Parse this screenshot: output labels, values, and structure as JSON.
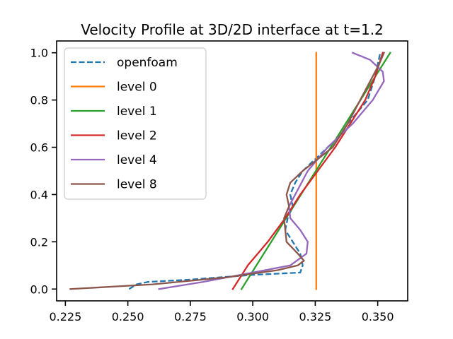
{
  "chart_data": {
    "type": "line",
    "title": "Velocity Profile at 3D/2D interface at t=1.2",
    "xlabel": "",
    "ylabel": "",
    "xlim": [
      0.2215,
      0.362
    ],
    "ylim": [
      -0.05,
      1.05
    ],
    "x_ticks": [
      "0.225",
      "0.250",
      "0.275",
      "0.300",
      "0.325",
      "0.350"
    ],
    "x_tick_values": [
      0.225,
      0.25,
      0.275,
      0.3,
      0.325,
      0.35
    ],
    "y_ticks": [
      "0.0",
      "0.2",
      "0.4",
      "0.6",
      "0.8",
      "1.0"
    ],
    "y_tick_values": [
      0.0,
      0.2,
      0.4,
      0.6,
      0.8,
      1.0
    ],
    "grid": false,
    "legend": "top-left",
    "series": [
      {
        "name": "openfoam",
        "color": "#1f77b4",
        "dashed": true,
        "x": [
          0.2505,
          0.2535,
          0.258,
          0.275,
          0.3,
          0.31,
          0.319,
          0.32,
          0.319,
          0.316,
          0.313,
          0.314,
          0.316,
          0.315,
          0.317,
          0.32,
          0.325,
          0.33,
          0.335,
          0.338,
          0.342,
          0.346,
          0.349,
          0.351
        ],
        "y": [
          0.0,
          0.02,
          0.03,
          0.04,
          0.06,
          0.065,
          0.07,
          0.1,
          0.15,
          0.2,
          0.25,
          0.3,
          0.35,
          0.4,
          0.45,
          0.5,
          0.55,
          0.6,
          0.65,
          0.7,
          0.75,
          0.8,
          0.9,
          1.0
        ]
      },
      {
        "name": "level 0",
        "color": "#ff7f0e",
        "dashed": false,
        "x": [
          0.3254,
          0.3254
        ],
        "y": [
          0.0,
          1.0
        ]
      },
      {
        "name": "level 1",
        "color": "#2ca02c",
        "dashed": false,
        "x": [
          0.2955,
          0.355
        ],
        "y": [
          0.0,
          1.0
        ]
      },
      {
        "name": "level 2",
        "color": "#d62728",
        "dashed": false,
        "x": [
          0.292,
          0.298,
          0.306,
          0.313,
          0.319,
          0.326,
          0.333,
          0.339,
          0.345,
          0.349,
          0.352
        ],
        "y": [
          0.0,
          0.1,
          0.2,
          0.3,
          0.4,
          0.5,
          0.6,
          0.7,
          0.8,
          0.9,
          1.0
        ]
      },
      {
        "name": "level 4",
        "color": "#9467bd",
        "dashed": false,
        "x": [
          0.2625,
          0.28,
          0.3,
          0.315,
          0.3215,
          0.322,
          0.319,
          0.315,
          0.3145,
          0.317,
          0.322,
          0.33,
          0.34,
          0.348,
          0.3525,
          0.352,
          0.347,
          0.34
        ],
        "y": [
          0.0,
          0.03,
          0.07,
          0.1,
          0.15,
          0.2,
          0.25,
          0.3,
          0.35,
          0.4,
          0.5,
          0.6,
          0.7,
          0.8,
          0.88,
          0.92,
          0.97,
          1.0
        ]
      },
      {
        "name": "level 8",
        "color": "#8c564b",
        "dashed": false,
        "x": [
          0.227,
          0.26,
          0.29,
          0.31,
          0.318,
          0.3205,
          0.318,
          0.3135,
          0.3125,
          0.3145,
          0.3135,
          0.315,
          0.32,
          0.326,
          0.332,
          0.338,
          0.343,
          0.347,
          0.3505,
          0.3525
        ],
        "y": [
          0.0,
          0.02,
          0.05,
          0.08,
          0.1,
          0.12,
          0.15,
          0.2,
          0.3,
          0.35,
          0.4,
          0.45,
          0.5,
          0.55,
          0.6,
          0.7,
          0.8,
          0.88,
          0.95,
          1.0
        ]
      }
    ]
  }
}
